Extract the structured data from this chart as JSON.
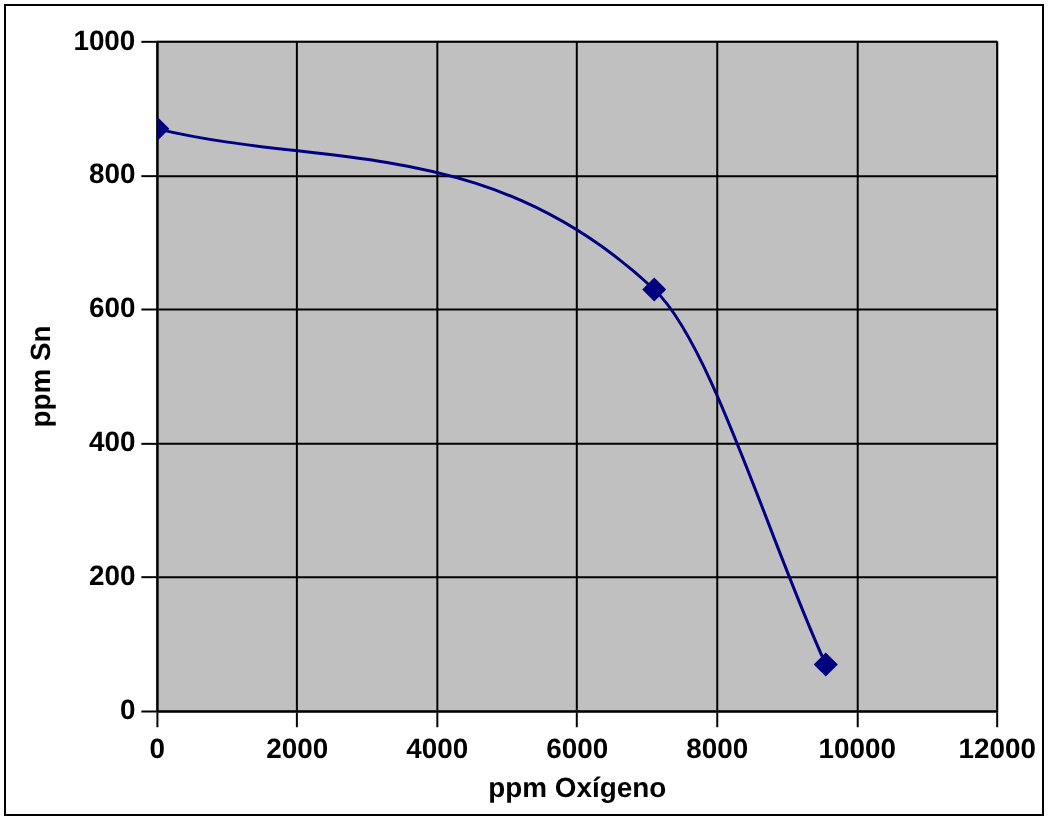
{
  "chart_data": {
    "type": "line",
    "xlabel": "ppm Oxígeno",
    "ylabel": "ppm Sn",
    "x": [
      0,
      7100,
      9550
    ],
    "series": [
      {
        "color": "#000080",
        "values": [
          870,
          630,
          70
        ]
      }
    ],
    "xlim": [
      0,
      12000
    ],
    "xticks": [
      0,
      2000,
      4000,
      6000,
      8000,
      10000,
      12000
    ],
    "ylim": [
      0,
      1000
    ],
    "yticks": [
      0,
      200,
      400,
      600,
      800,
      1000
    ],
    "grid": true,
    "legend": false,
    "marker": "diamond",
    "line_style": "solid"
  }
}
